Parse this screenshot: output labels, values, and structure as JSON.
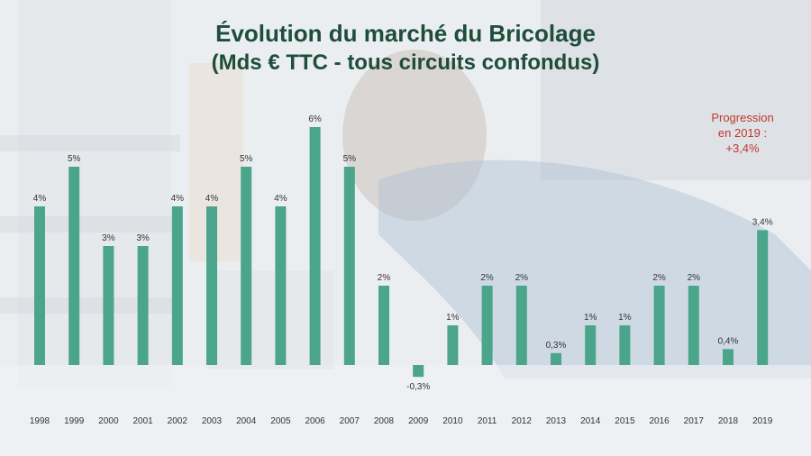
{
  "title": "Évolution du marché du Bricolage",
  "subtitle": "(Mds € TTC - tous circuits confondus)",
  "note": {
    "line1": "Progression",
    "line2": "en 2019 :",
    "line3": "+3,4%"
  },
  "colors": {
    "bar": "#4aa58a",
    "title": "#1e4d3a",
    "note": "#c0392b"
  },
  "chart_data": {
    "type": "bar",
    "categories": [
      "1998",
      "1999",
      "2000",
      "2001",
      "2002",
      "2003",
      "2004",
      "2005",
      "2006",
      "2007",
      "2008",
      "2009",
      "2010",
      "2011",
      "2012",
      "2013",
      "2014",
      "2015",
      "2016",
      "2017",
      "2018",
      "2019"
    ],
    "values": [
      4,
      5,
      3,
      3,
      4,
      4,
      5,
      4,
      6,
      5,
      2,
      -0.3,
      1,
      2,
      2,
      0.3,
      1,
      1,
      2,
      2,
      0.4,
      3.4
    ],
    "labels": [
      "4%",
      "5%",
      "3%",
      "3%",
      "4%",
      "4%",
      "5%",
      "4%",
      "6%",
      "5%",
      "2%",
      "-0,3%",
      "1%",
      "2%",
      "2%",
      "0,3%",
      "1%",
      "1%",
      "2%",
      "2%",
      "0,4%",
      "3,4%"
    ],
    "title": "Évolution du marché du Bricolage",
    "xlabel": "",
    "ylabel": "",
    "grid": false,
    "legend": "none"
  }
}
